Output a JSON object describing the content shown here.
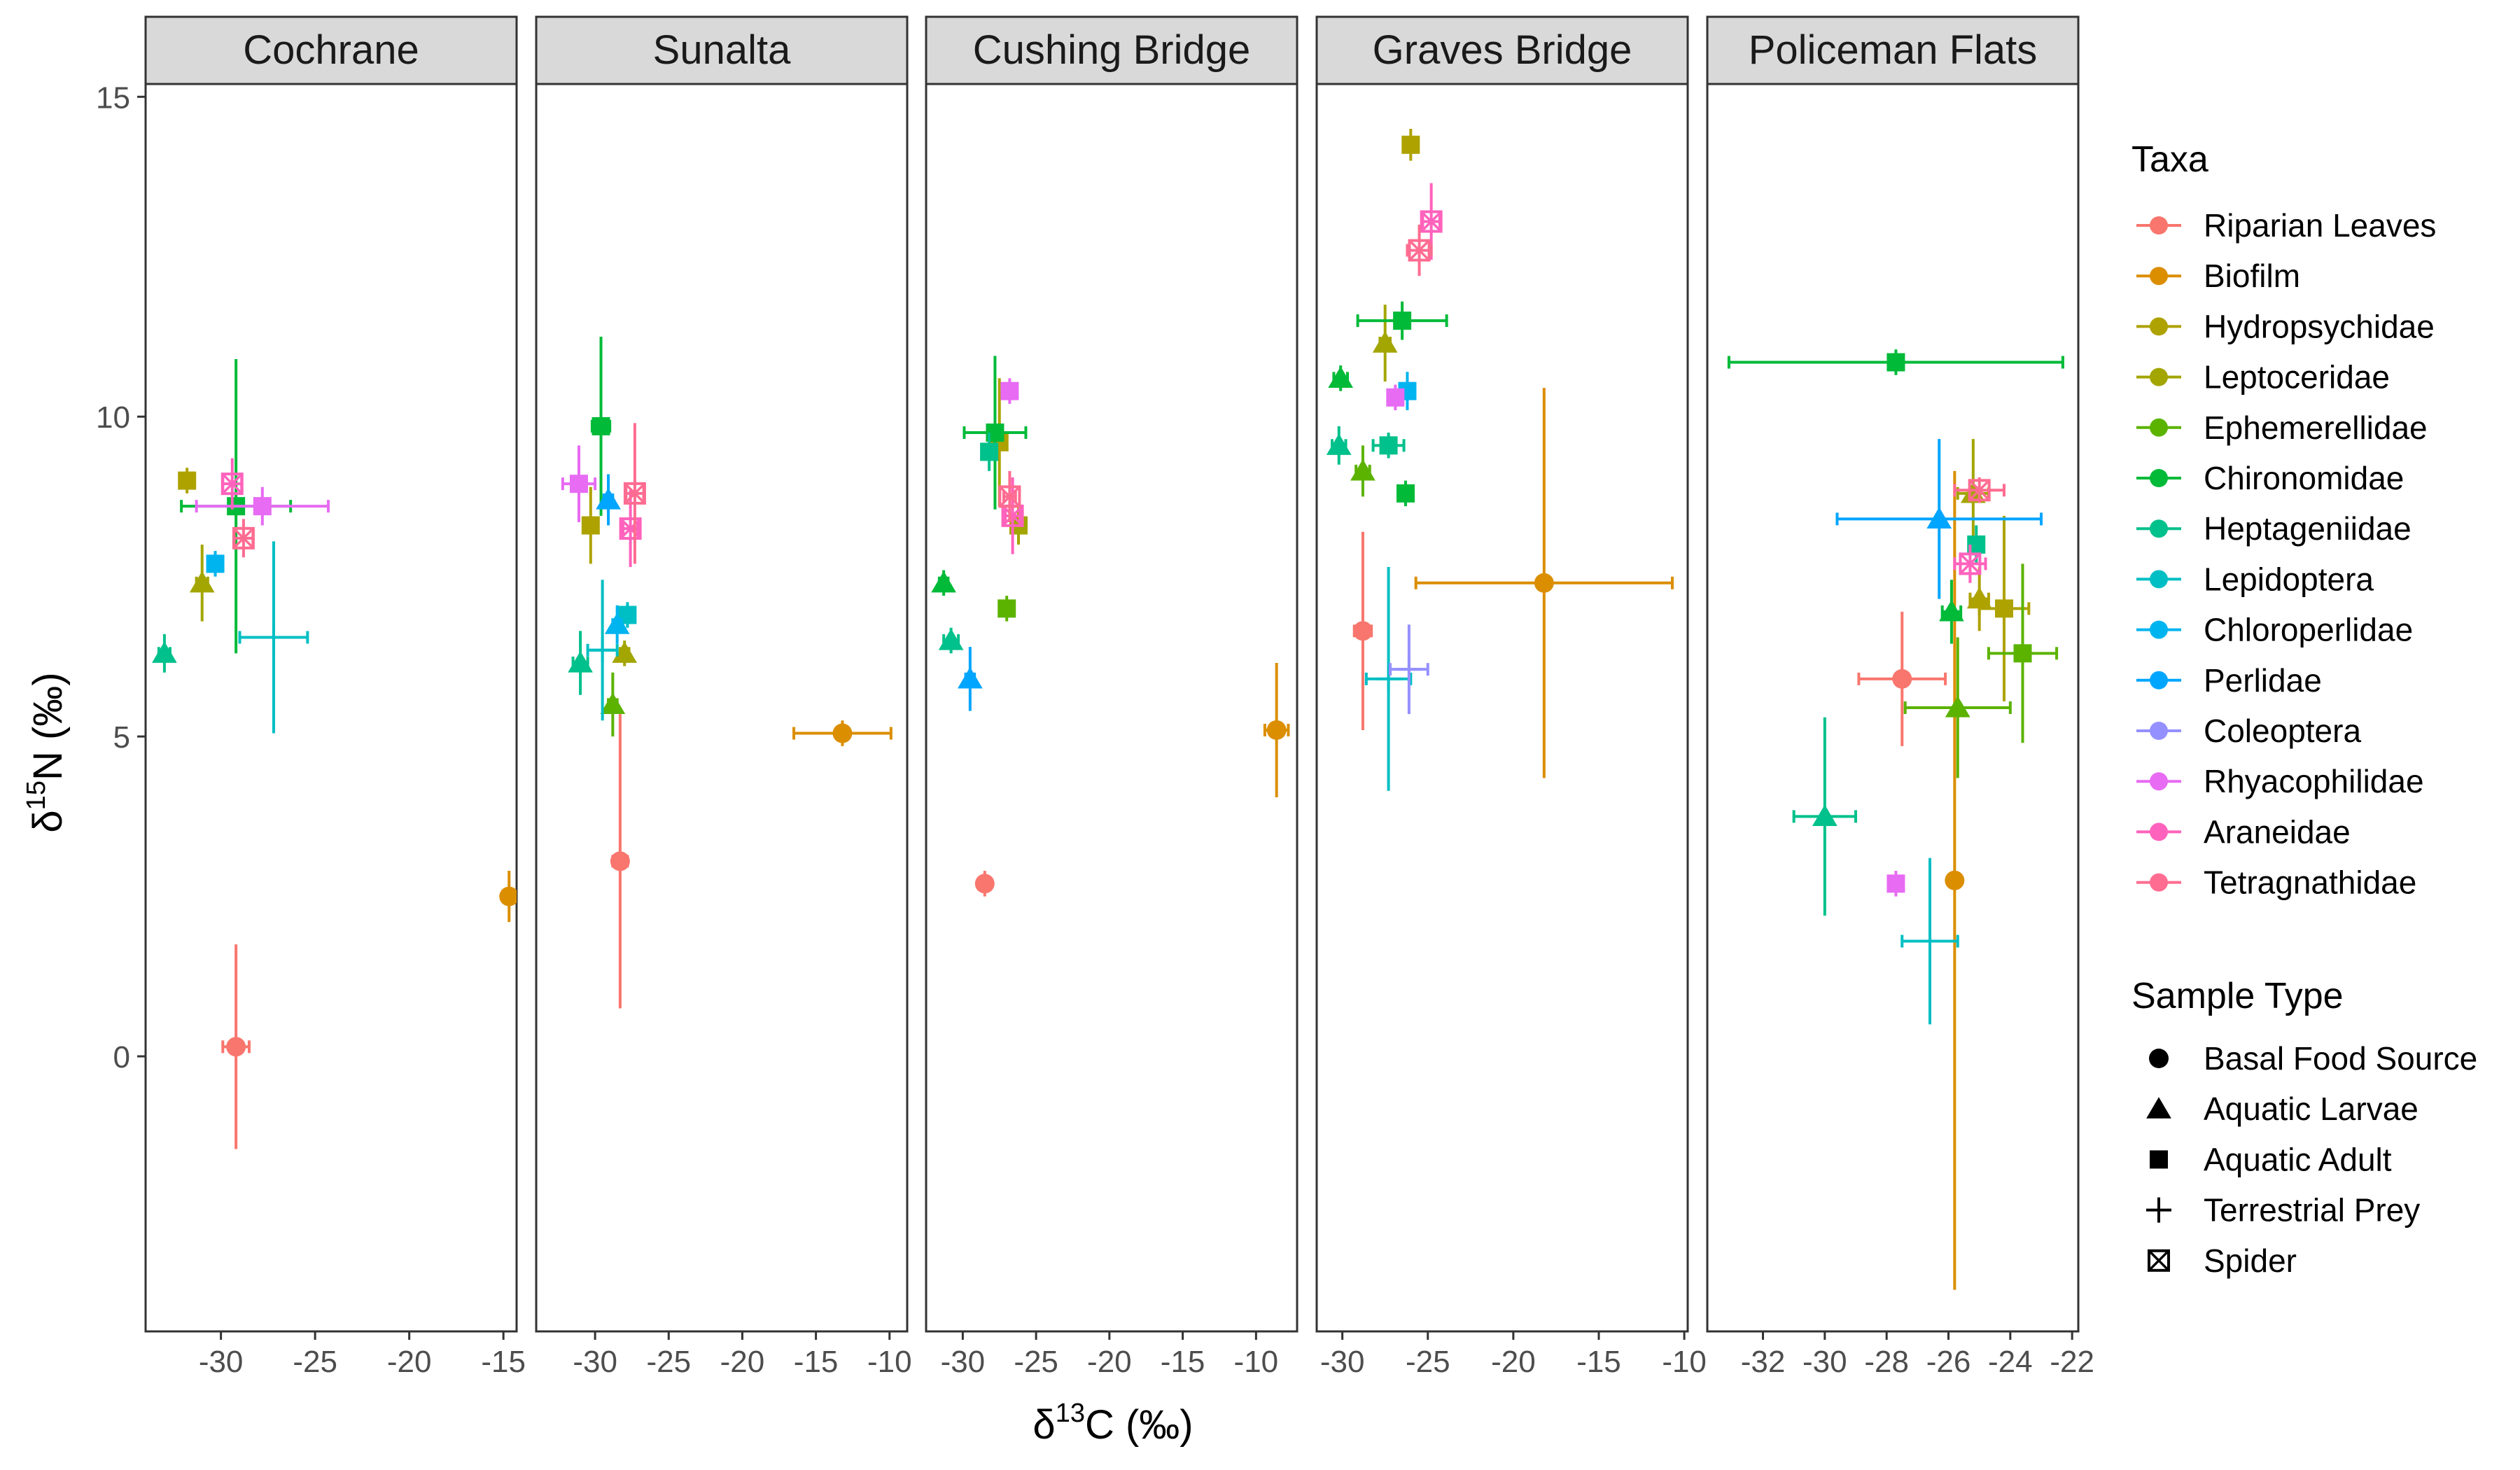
{
  "chart_data": {
    "type": "scatter",
    "xlabel_base": "δ",
    "xlabel_sup": "13",
    "xlabel_rest": "C (‰)",
    "ylabel_base": "δ",
    "ylabel_sup": "15",
    "ylabel_rest": "N (‰)",
    "ylim": [
      -4.3,
      15.2
    ],
    "yticks": [
      0,
      5,
      10,
      15
    ],
    "legend_placement": "right",
    "legend_taxa_title": "Taxa",
    "legend_shape_title": "Sample Type",
    "taxa": [
      {
        "name": "Riparian Leaves",
        "color": "#F8766D"
      },
      {
        "name": "Biofilm",
        "color": "#DB8E00"
      },
      {
        "name": "Hydropsychidae",
        "color": "#AEA200"
      },
      {
        "name": "Leptoceridae",
        "color": "#A3A500"
      },
      {
        "name": "Ephemerellidae",
        "color": "#5BB300"
      },
      {
        "name": "Chironomidae",
        "color": "#00BA38"
      },
      {
        "name": "Heptageniidae",
        "color": "#00C08B"
      },
      {
        "name": "Lepidoptera",
        "color": "#00BFC4"
      },
      {
        "name": "Chloroperlidae",
        "color": "#00B4F0"
      },
      {
        "name": "Perlidae",
        "color": "#00A5FF"
      },
      {
        "name": "Coleoptera",
        "color": "#9590FF"
      },
      {
        "name": "Rhyacophilidae",
        "color": "#E76BF3"
      },
      {
        "name": "Araneidae",
        "color": "#FF62BC"
      },
      {
        "name": "Tetragnathidae",
        "color": "#FF6C91"
      }
    ],
    "sample_types": [
      {
        "name": "Basal Food Source",
        "shape": "circle"
      },
      {
        "name": "Aquatic Larvae",
        "shape": "triangle"
      },
      {
        "name": "Aquatic Adult",
        "shape": "square"
      },
      {
        "name": "Terrestrial Prey",
        "shape": "cross"
      },
      {
        "name": "Spider",
        "shape": "boxx"
      }
    ],
    "panels": [
      {
        "title": "Cochrane",
        "xlim": [
          -34,
          -14.3
        ],
        "xticks": [
          -30,
          -25,
          -20,
          -15
        ],
        "points": [
          {
            "taxon": 0,
            "shape": "circle",
            "x": -29.2,
            "y": 0.15,
            "xerr": 0.7,
            "yerr": 1.6
          },
          {
            "taxon": 1,
            "shape": "circle",
            "x": -14.7,
            "y": 2.5,
            "xerr": 0.3,
            "yerr": 0.4
          },
          {
            "taxon": 2,
            "shape": "square",
            "x": -31.8,
            "y": 9.0,
            "xerr": 0.2,
            "yerr": 0.2
          },
          {
            "taxon": 3,
            "shape": "triangle",
            "x": -31.0,
            "y": 7.4,
            "xerr": 0.3,
            "yerr": 0.6
          },
          {
            "taxon": 5,
            "shape": "square",
            "x": -29.2,
            "y": 8.6,
            "xerr": 2.9,
            "yerr": 2.3
          },
          {
            "taxon": 6,
            "shape": "triangle",
            "x": -33.0,
            "y": 6.3,
            "xerr": 0.3,
            "yerr": 0.3
          },
          {
            "taxon": 7,
            "shape": "cross",
            "x": -27.2,
            "y": 6.55,
            "xerr": 1.8,
            "yerr": 1.5
          },
          {
            "taxon": 8,
            "shape": "square",
            "x": -30.3,
            "y": 7.7,
            "xerr": 0.2,
            "yerr": 0.2
          },
          {
            "taxon": 11,
            "shape": "square",
            "x": -27.8,
            "y": 8.6,
            "xerr": 3.5,
            "yerr": 0.3
          },
          {
            "taxon": 12,
            "shape": "boxx",
            "x": -29.4,
            "y": 8.95,
            "xerr": 0.5,
            "yerr": 0.4
          },
          {
            "taxon": 13,
            "shape": "boxx",
            "x": -28.8,
            "y": 8.1,
            "xerr": 0.5,
            "yerr": 0.3
          }
        ]
      },
      {
        "title": "Sunalta",
        "xlim": [
          -34,
          -8.8
        ],
        "xticks": [
          -30,
          -25,
          -20,
          -15,
          -10
        ],
        "points": [
          {
            "taxon": 0,
            "shape": "circle",
            "x": -28.3,
            "y": 3.05,
            "xerr": 0.5,
            "yerr": 2.3
          },
          {
            "taxon": 1,
            "shape": "circle",
            "x": -13.2,
            "y": 5.05,
            "xerr": 3.3,
            "yerr": 0.2
          },
          {
            "taxon": 2,
            "shape": "square",
            "x": -30.3,
            "y": 8.3,
            "xerr": 0.3,
            "yerr": 0.6
          },
          {
            "taxon": 3,
            "shape": "triangle",
            "x": -28.0,
            "y": 6.3,
            "xerr": 0.3,
            "yerr": 0.2
          },
          {
            "taxon": 4,
            "shape": "triangle",
            "x": -28.8,
            "y": 5.5,
            "xerr": 0.3,
            "yerr": 0.5
          },
          {
            "taxon": 5,
            "shape": "square",
            "x": -29.6,
            "y": 9.85,
            "xerr": 0.6,
            "yerr": 1.4
          },
          {
            "taxon": 6,
            "shape": "triangle",
            "x": -31.0,
            "y": 6.15,
            "xerr": 0.5,
            "yerr": 0.5
          },
          {
            "taxon": 7,
            "shape": "cross",
            "x": -29.5,
            "y": 6.35,
            "xerr": 1.0,
            "yerr": 1.1
          },
          {
            "taxon": 7,
            "shape": "square",
            "x": -27.8,
            "y": 6.9,
            "xerr": 0.2,
            "yerr": 0.2
          },
          {
            "taxon": 8,
            "shape": "triangle",
            "x": -28.5,
            "y": 6.75,
            "xerr": 0.3,
            "yerr": 0.3
          },
          {
            "taxon": 9,
            "shape": "triangle",
            "x": -29.1,
            "y": 8.7,
            "xerr": 0.3,
            "yerr": 0.4
          },
          {
            "taxon": 11,
            "shape": "square",
            "x": -31.1,
            "y": 8.95,
            "xerr": 1.1,
            "yerr": 0.6
          },
          {
            "taxon": 12,
            "shape": "boxx",
            "x": -27.6,
            "y": 8.25,
            "xerr": 0.5,
            "yerr": 0.6
          },
          {
            "taxon": 13,
            "shape": "boxx",
            "x": -27.3,
            "y": 8.8,
            "xerr": 0.6,
            "yerr": 1.1
          }
        ]
      },
      {
        "title": "Cushing Bridge",
        "xlim": [
          -32.5,
          -7.2
        ],
        "xticks": [
          -30,
          -25,
          -20,
          -15,
          -10
        ],
        "points": [
          {
            "taxon": 0,
            "shape": "circle",
            "x": -28.5,
            "y": 2.7,
            "xerr": 0.4,
            "yerr": 0.2
          },
          {
            "taxon": 1,
            "shape": "circle",
            "x": -8.6,
            "y": 5.1,
            "xerr": 0.8,
            "yerr": 1.05
          },
          {
            "taxon": 2,
            "shape": "square",
            "x": -27.5,
            "y": 9.6,
            "xerr": 0.3,
            "yerr": 1.0
          },
          {
            "taxon": 3,
            "shape": "square",
            "x": -26.2,
            "y": 8.3,
            "xerr": 0.3,
            "yerr": 0.3
          },
          {
            "taxon": 4,
            "shape": "square",
            "x": -27.0,
            "y": 7.0,
            "xerr": 0.2,
            "yerr": 0.2
          },
          {
            "taxon": 5,
            "shape": "square",
            "x": -27.8,
            "y": 9.75,
            "xerr": 2.1,
            "yerr": 1.2
          },
          {
            "taxon": 5,
            "shape": "triangle",
            "x": -31.3,
            "y": 7.4,
            "xerr": 0.3,
            "yerr": 0.2
          },
          {
            "taxon": 6,
            "shape": "triangle",
            "x": -30.8,
            "y": 6.5,
            "xerr": 0.5,
            "yerr": 0.2
          },
          {
            "taxon": 6,
            "shape": "square",
            "x": -28.2,
            "y": 9.45,
            "xerr": 0.3,
            "yerr": 0.3
          },
          {
            "taxon": 9,
            "shape": "triangle",
            "x": -29.5,
            "y": 5.9,
            "xerr": 0.3,
            "yerr": 0.5
          },
          {
            "taxon": 11,
            "shape": "square",
            "x": -26.8,
            "y": 10.4,
            "xerr": 0.2,
            "yerr": 0.2
          },
          {
            "taxon": 12,
            "shape": "boxx",
            "x": -26.6,
            "y": 8.45,
            "xerr": 0.5,
            "yerr": 0.6
          },
          {
            "taxon": 13,
            "shape": "boxx",
            "x": -26.8,
            "y": 8.75,
            "xerr": 0.4,
            "yerr": 0.4
          }
        ]
      },
      {
        "title": "Graves Bridge",
        "xlim": [
          -31.5,
          -9.8
        ],
        "xticks": [
          -30,
          -25,
          -20,
          -15,
          -10
        ],
        "points": [
          {
            "taxon": 0,
            "shape": "circle",
            "x": -28.8,
            "y": 6.65,
            "xerr": 0.5,
            "yerr": 1.55
          },
          {
            "taxon": 1,
            "shape": "circle",
            "x": -18.2,
            "y": 7.4,
            "xerr": 7.5,
            "yerr": 3.05
          },
          {
            "taxon": 2,
            "shape": "square",
            "x": -26.0,
            "y": 14.25,
            "xerr": 0.3,
            "yerr": 0.25
          },
          {
            "taxon": 3,
            "shape": "triangle",
            "x": -27.5,
            "y": 11.15,
            "xerr": 0.3,
            "yerr": 0.6
          },
          {
            "taxon": 4,
            "shape": "triangle",
            "x": -28.8,
            "y": 9.15,
            "xerr": 0.4,
            "yerr": 0.4
          },
          {
            "taxon": 5,
            "shape": "square",
            "x": -26.5,
            "y": 11.5,
            "xerr": 2.6,
            "yerr": 0.3
          },
          {
            "taxon": 5,
            "shape": "triangle",
            "x": -30.1,
            "y": 10.6,
            "xerr": 0.4,
            "yerr": 0.2
          },
          {
            "taxon": 5,
            "shape": "square",
            "x": -26.3,
            "y": 8.8,
            "xerr": 0.2,
            "yerr": 0.2
          },
          {
            "taxon": 6,
            "shape": "triangle",
            "x": -30.2,
            "y": 9.55,
            "xerr": 0.4,
            "yerr": 0.3
          },
          {
            "taxon": 6,
            "shape": "square",
            "x": -27.3,
            "y": 9.55,
            "xerr": 0.9,
            "yerr": 0.2
          },
          {
            "taxon": 7,
            "shape": "cross",
            "x": -27.3,
            "y": 5.9,
            "xerr": 1.3,
            "yerr": 1.75
          },
          {
            "taxon": 8,
            "shape": "square",
            "x": -26.2,
            "y": 10.4,
            "xerr": 0.3,
            "yerr": 0.3
          },
          {
            "taxon": 10,
            "shape": "cross",
            "x": -26.1,
            "y": 6.05,
            "xerr": 1.1,
            "yerr": 0.7
          },
          {
            "taxon": 11,
            "shape": "square",
            "x": -26.9,
            "y": 10.3,
            "xerr": 0.2,
            "yerr": 0.2
          },
          {
            "taxon": 12,
            "shape": "boxx",
            "x": -24.8,
            "y": 13.05,
            "xerr": 0.5,
            "yerr": 0.6
          },
          {
            "taxon": 13,
            "shape": "boxx",
            "x": -25.5,
            "y": 12.6,
            "xerr": 0.7,
            "yerr": 0.4
          }
        ]
      },
      {
        "title": "Policeman Flats",
        "xlim": [
          -33.8,
          -21.8
        ],
        "xticks": [
          -32,
          -30,
          -28,
          -26,
          -24,
          -22
        ],
        "points": [
          {
            "taxon": 0,
            "shape": "circle",
            "x": -27.5,
            "y": 5.9,
            "xerr": 1.4,
            "yerr": 1.05
          },
          {
            "taxon": 1,
            "shape": "circle",
            "x": -25.8,
            "y": 2.75,
            "xerr": 0.2,
            "yerr": 6.4
          },
          {
            "taxon": 2,
            "shape": "square",
            "x": -24.2,
            "y": 7.0,
            "xerr": 0.8,
            "yerr": 1.45
          },
          {
            "taxon": 2,
            "shape": "triangle",
            "x": -25.0,
            "y": 7.15,
            "xerr": 0.3,
            "yerr": 0.5
          },
          {
            "taxon": 3,
            "shape": "triangle",
            "x": -25.2,
            "y": 8.8,
            "xerr": 0.5,
            "yerr": 0.85
          },
          {
            "taxon": 4,
            "shape": "triangle",
            "x": -25.7,
            "y": 5.45,
            "xerr": 1.7,
            "yerr": 1.1
          },
          {
            "taxon": 4,
            "shape": "square",
            "x": -23.6,
            "y": 6.3,
            "xerr": 1.1,
            "yerr": 1.4
          },
          {
            "taxon": 5,
            "shape": "square",
            "x": -27.7,
            "y": 10.85,
            "xerr": 5.4,
            "yerr": 0.2
          },
          {
            "taxon": 5,
            "shape": "triangle",
            "x": -25.9,
            "y": 6.95,
            "xerr": 0.3,
            "yerr": 0.5
          },
          {
            "taxon": 6,
            "shape": "triangle",
            "x": -30.0,
            "y": 3.75,
            "xerr": 1.0,
            "yerr": 1.55
          },
          {
            "taxon": 6,
            "shape": "square",
            "x": -25.1,
            "y": 8.0,
            "xerr": 0.2,
            "yerr": 0.3
          },
          {
            "taxon": 7,
            "shape": "cross",
            "x": -26.6,
            "y": 1.8,
            "xerr": 0.9,
            "yerr": 1.3
          },
          {
            "taxon": 9,
            "shape": "triangle",
            "x": -26.3,
            "y": 8.4,
            "xerr": 3.3,
            "yerr": 1.25
          },
          {
            "taxon": 11,
            "shape": "square",
            "x": -27.7,
            "y": 2.7,
            "xerr": 0.2,
            "yerr": 0.2
          },
          {
            "taxon": 12,
            "shape": "boxx",
            "x": -25.3,
            "y": 7.7,
            "xerr": 0.5,
            "yerr": 0.3
          },
          {
            "taxon": 13,
            "shape": "boxx",
            "x": -25.0,
            "y": 8.85,
            "xerr": 0.8,
            "yerr": 0.2
          }
        ]
      }
    ]
  }
}
